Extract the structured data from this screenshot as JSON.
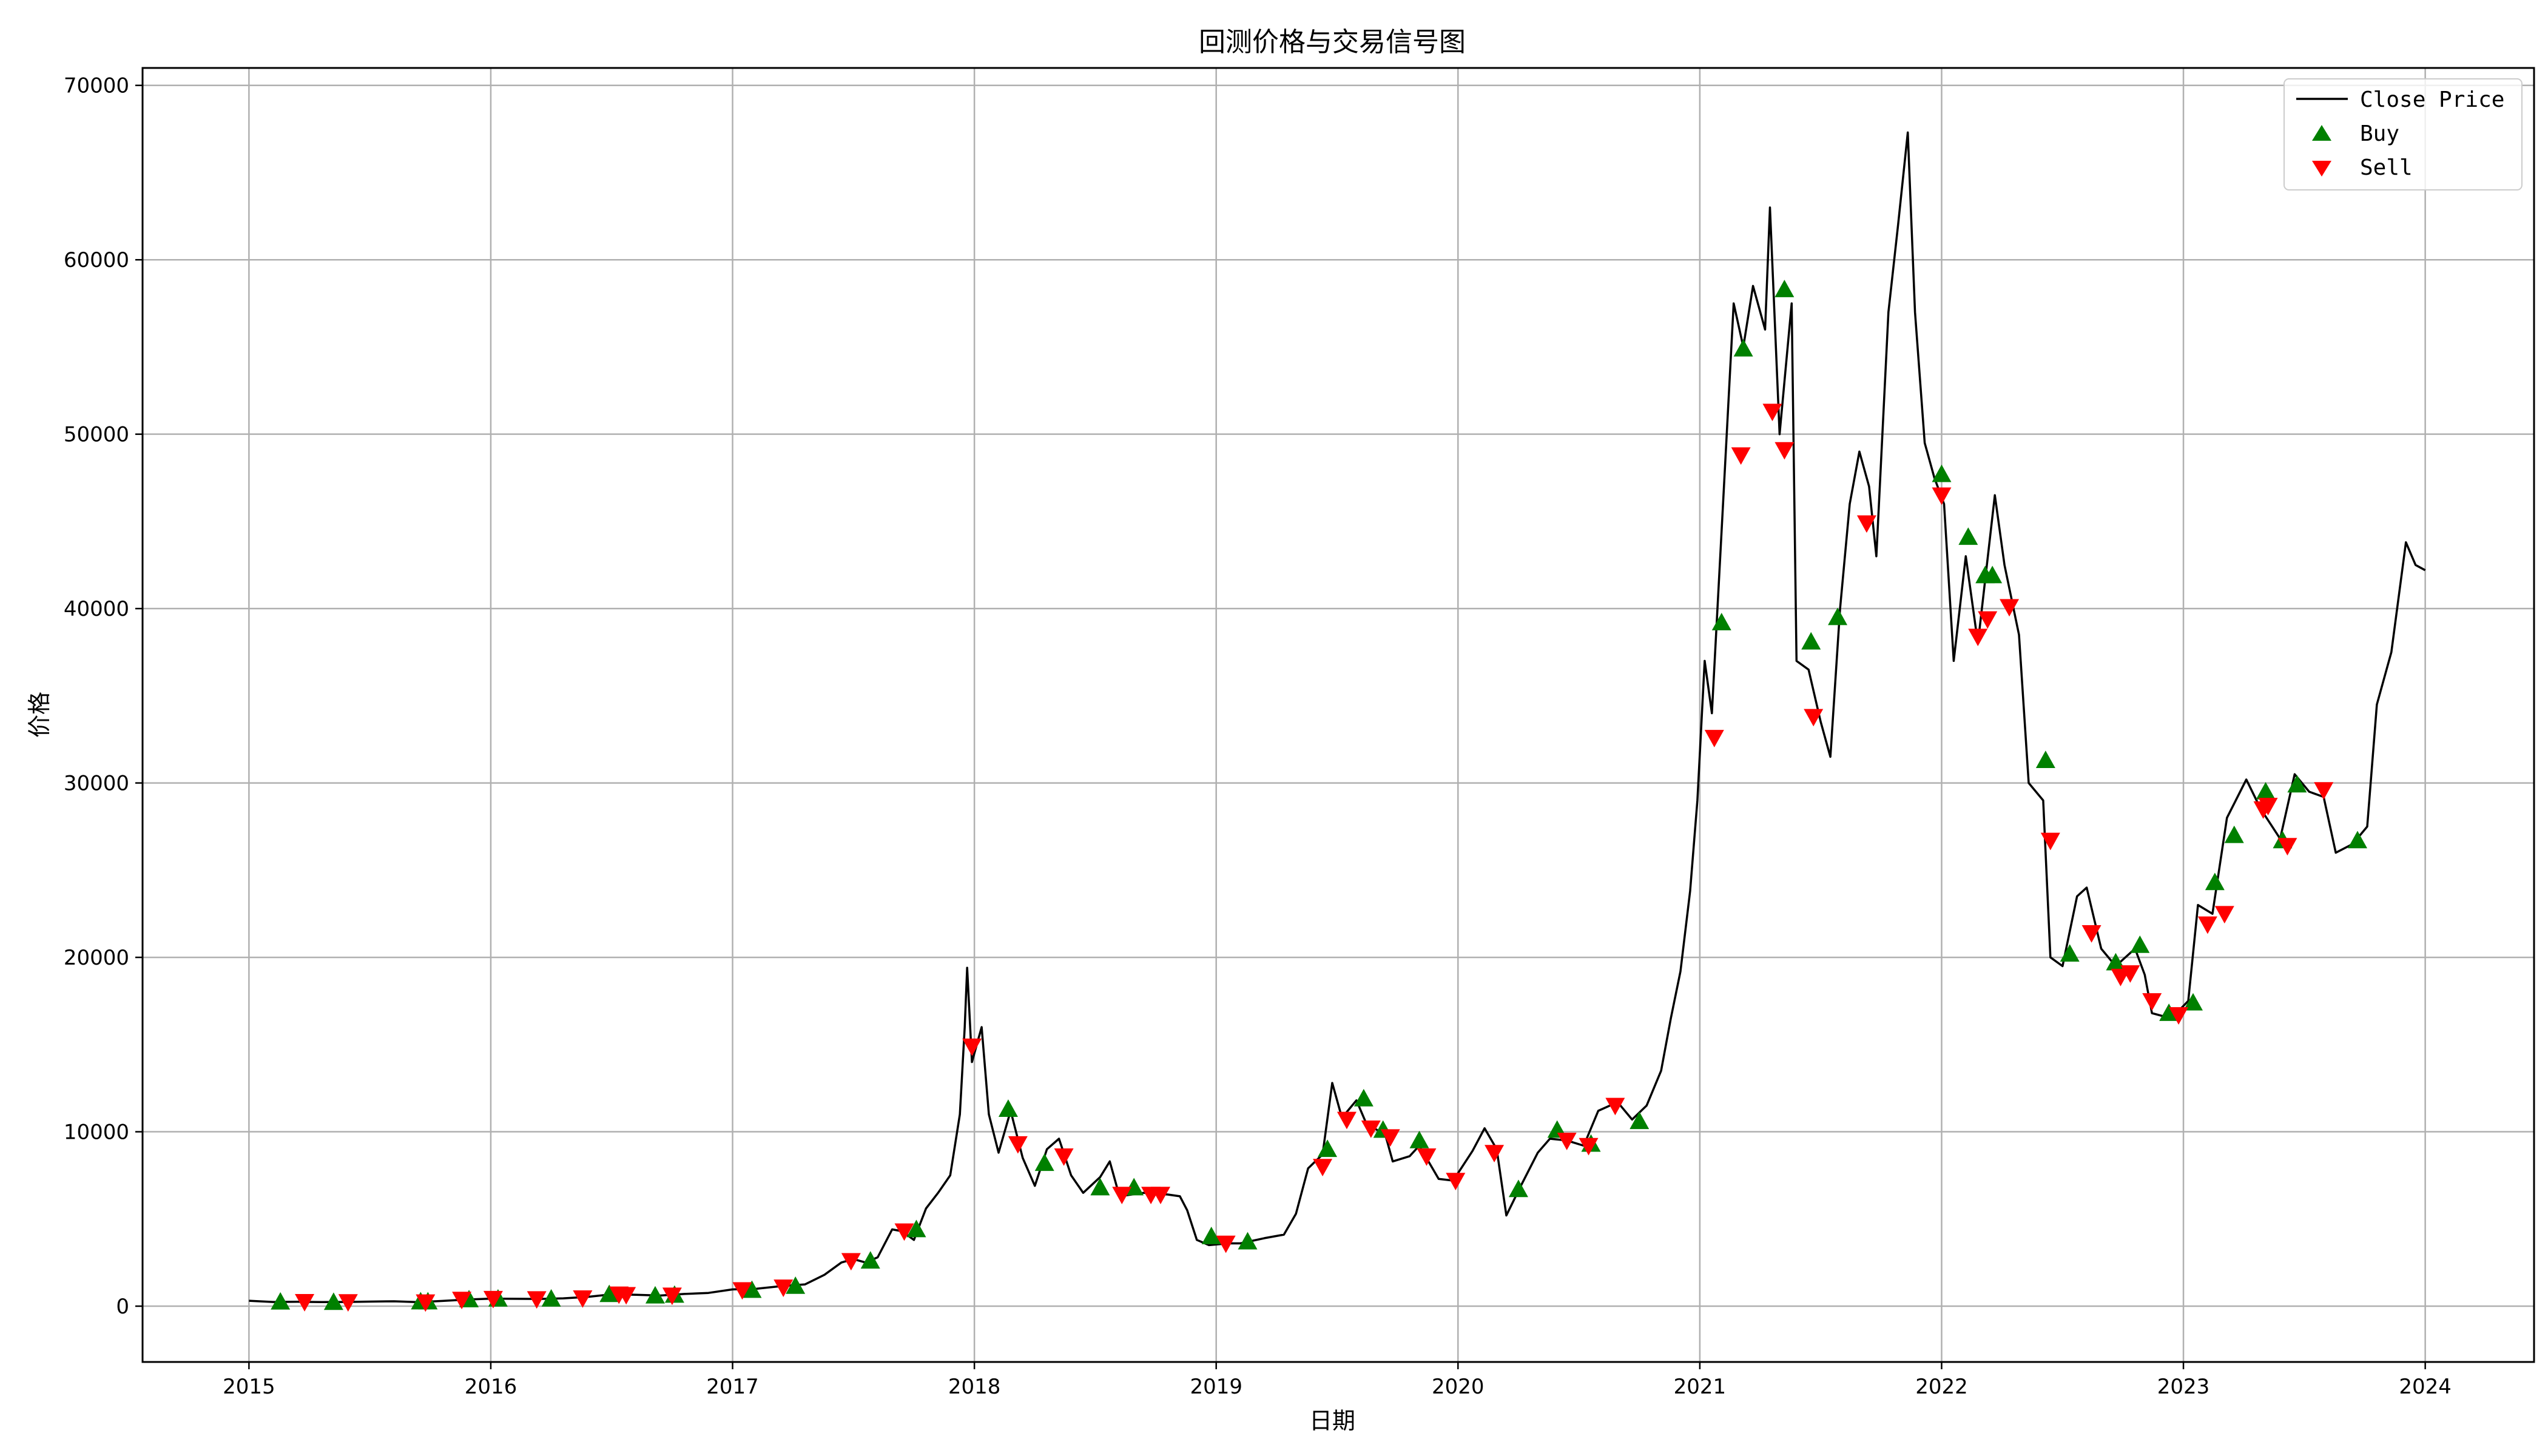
{
  "chart_data": {
    "type": "line",
    "title": "回测价格与交易信号图",
    "xlabel": "日期",
    "ylabel": "价格",
    "x_ticks": [
      "2015",
      "2016",
      "2017",
      "2018",
      "2019",
      "2020",
      "2021",
      "2022",
      "2023",
      "2024"
    ],
    "y_ticks": [
      0,
      10000,
      20000,
      30000,
      40000,
      50000,
      60000,
      70000
    ],
    "xlim": [
      2014.56,
      2024.45
    ],
    "ylim": [
      -3200,
      71000
    ],
    "grid": true,
    "legend_position": "top-right",
    "colors": {
      "line": "#000000",
      "buy": "#008000",
      "sell": "#ff0000",
      "grid": "#b0b0b0"
    },
    "series": [
      {
        "name": "Close Price",
        "type": "line",
        "points": [
          [
            2015.0,
            310
          ],
          [
            2015.1,
            240
          ],
          [
            2015.2,
            250
          ],
          [
            2015.3,
            235
          ],
          [
            2015.4,
            240
          ],
          [
            2015.5,
            260
          ],
          [
            2015.6,
            280
          ],
          [
            2015.7,
            230
          ],
          [
            2015.8,
            300
          ],
          [
            2015.9,
            380
          ],
          [
            2016.0,
            430
          ],
          [
            2016.1,
            420
          ],
          [
            2016.2,
            415
          ],
          [
            2016.3,
            450
          ],
          [
            2016.4,
            530
          ],
          [
            2016.5,
            680
          ],
          [
            2016.6,
            650
          ],
          [
            2016.7,
            610
          ],
          [
            2016.8,
            700
          ],
          [
            2016.9,
            760
          ],
          [
            2017.0,
            960
          ],
          [
            2017.1,
            1000
          ],
          [
            2017.2,
            1150
          ],
          [
            2017.3,
            1250
          ],
          [
            2017.38,
            1800
          ],
          [
            2017.45,
            2500
          ],
          [
            2017.5,
            2700
          ],
          [
            2017.55,
            2500
          ],
          [
            2017.6,
            2800
          ],
          [
            2017.66,
            4400
          ],
          [
            2017.7,
            4300
          ],
          [
            2017.75,
            3800
          ],
          [
            2017.8,
            5600
          ],
          [
            2017.85,
            6500
          ],
          [
            2017.9,
            7500
          ],
          [
            2017.94,
            11000
          ],
          [
            2017.96,
            16000
          ],
          [
            2017.97,
            19400
          ],
          [
            2017.99,
            14000
          ],
          [
            2018.03,
            16000
          ],
          [
            2018.06,
            11000
          ],
          [
            2018.1,
            8800
          ],
          [
            2018.15,
            11200
          ],
          [
            2018.2,
            8500
          ],
          [
            2018.25,
            6900
          ],
          [
            2018.3,
            9000
          ],
          [
            2018.35,
            9600
          ],
          [
            2018.4,
            7500
          ],
          [
            2018.45,
            6500
          ],
          [
            2018.52,
            7400
          ],
          [
            2018.56,
            8300
          ],
          [
            2018.6,
            6300
          ],
          [
            2018.7,
            6500
          ],
          [
            2018.8,
            6400
          ],
          [
            2018.85,
            6300
          ],
          [
            2018.88,
            5500
          ],
          [
            2018.92,
            3800
          ],
          [
            2018.97,
            3500
          ],
          [
            2019.05,
            3600
          ],
          [
            2019.1,
            3600
          ],
          [
            2019.2,
            3900
          ],
          [
            2019.28,
            4100
          ],
          [
            2019.33,
            5300
          ],
          [
            2019.38,
            7900
          ],
          [
            2019.44,
            8700
          ],
          [
            2019.48,
            12800
          ],
          [
            2019.52,
            10800
          ],
          [
            2019.58,
            11800
          ],
          [
            2019.62,
            10500
          ],
          [
            2019.7,
            9800
          ],
          [
            2019.73,
            8300
          ],
          [
            2019.8,
            8600
          ],
          [
            2019.84,
            9200
          ],
          [
            2019.92,
            7300
          ],
          [
            2019.98,
            7200
          ],
          [
            2020.06,
            8900
          ],
          [
            2020.11,
            10200
          ],
          [
            2020.16,
            9000
          ],
          [
            2020.2,
            5200
          ],
          [
            2020.26,
            6900
          ],
          [
            2020.33,
            8800
          ],
          [
            2020.38,
            9600
          ],
          [
            2020.45,
            9500
          ],
          [
            2020.52,
            9200
          ],
          [
            2020.58,
            11200
          ],
          [
            2020.66,
            11700
          ],
          [
            2020.72,
            10700
          ],
          [
            2020.78,
            11500
          ],
          [
            2020.84,
            13500
          ],
          [
            2020.88,
            16500
          ],
          [
            2020.92,
            19200
          ],
          [
            2020.96,
            23800
          ],
          [
            2020.99,
            29000
          ],
          [
            2021.02,
            37000
          ],
          [
            2021.05,
            34000
          ],
          [
            2021.1,
            47000
          ],
          [
            2021.14,
            57500
          ],
          [
            2021.18,
            55000
          ],
          [
            2021.22,
            58500
          ],
          [
            2021.27,
            56000
          ],
          [
            2021.29,
            63000
          ],
          [
            2021.33,
            50000
          ],
          [
            2021.38,
            57500
          ],
          [
            2021.4,
            37000
          ],
          [
            2021.45,
            36500
          ],
          [
            2021.5,
            33500
          ],
          [
            2021.54,
            31500
          ],
          [
            2021.58,
            40000
          ],
          [
            2021.62,
            46000
          ],
          [
            2021.66,
            49000
          ],
          [
            2021.7,
            47000
          ],
          [
            2021.73,
            43000
          ],
          [
            2021.78,
            57000
          ],
          [
            2021.82,
            62000
          ],
          [
            2021.86,
            67300
          ],
          [
            2021.89,
            57000
          ],
          [
            2021.93,
            49500
          ],
          [
            2021.97,
            47500
          ],
          [
            2022.01,
            46000
          ],
          [
            2022.05,
            37000
          ],
          [
            2022.1,
            43000
          ],
          [
            2022.15,
            38000
          ],
          [
            2022.22,
            46500
          ],
          [
            2022.26,
            42500
          ],
          [
            2022.32,
            38500
          ],
          [
            2022.36,
            30000
          ],
          [
            2022.42,
            29000
          ],
          [
            2022.45,
            20000
          ],
          [
            2022.5,
            19500
          ],
          [
            2022.56,
            23500
          ],
          [
            2022.6,
            24000
          ],
          [
            2022.66,
            20500
          ],
          [
            2022.72,
            19500
          ],
          [
            2022.8,
            20500
          ],
          [
            2022.84,
            19000
          ],
          [
            2022.87,
            16800
          ],
          [
            2022.95,
            16500
          ],
          [
            2023.02,
            17500
          ],
          [
            2023.06,
            23000
          ],
          [
            2023.12,
            22500
          ],
          [
            2023.18,
            28000
          ],
          [
            2023.26,
            30200
          ],
          [
            2023.32,
            28500
          ],
          [
            2023.4,
            26800
          ],
          [
            2023.46,
            30500
          ],
          [
            2023.52,
            29500
          ],
          [
            2023.58,
            29200
          ],
          [
            2023.63,
            26000
          ],
          [
            2023.7,
            26500
          ],
          [
            2023.76,
            27500
          ],
          [
            2023.8,
            34500
          ],
          [
            2023.86,
            37500
          ],
          [
            2023.92,
            43800
          ],
          [
            2023.96,
            42500
          ],
          [
            2024.0,
            42200
          ]
        ]
      },
      {
        "name": "Buy",
        "type": "scatter",
        "marker": "triangle-up",
        "points": [
          [
            2015.13,
            250
          ],
          [
            2015.35,
            230
          ],
          [
            2015.71,
            260
          ],
          [
            2015.74,
            260
          ],
          [
            2015.91,
            380
          ],
          [
            2016.03,
            420
          ],
          [
            2016.25,
            420
          ],
          [
            2016.49,
            680
          ],
          [
            2016.68,
            600
          ],
          [
            2016.76,
            640
          ],
          [
            2017.08,
            920
          ],
          [
            2017.26,
            1150
          ],
          [
            2017.57,
            2600
          ],
          [
            2017.76,
            4400
          ],
          [
            2018.14,
            11300
          ],
          [
            2018.29,
            8200
          ],
          [
            2018.52,
            6800
          ],
          [
            2018.66,
            6800
          ],
          [
            2018.98,
            4000
          ],
          [
            2019.13,
            3700
          ],
          [
            2019.46,
            9000
          ],
          [
            2019.61,
            11900
          ],
          [
            2019.69,
            10100
          ],
          [
            2019.84,
            9500
          ],
          [
            2020.25,
            6700
          ],
          [
            2020.41,
            10100
          ],
          [
            2020.55,
            9300
          ],
          [
            2020.75,
            10600
          ],
          [
            2021.09,
            39200
          ],
          [
            2021.18,
            54900
          ],
          [
            2021.35,
            58300
          ],
          [
            2021.46,
            38100
          ],
          [
            2021.57,
            39500
          ],
          [
            2022.0,
            47700
          ],
          [
            2022.11,
            44100
          ],
          [
            2022.18,
            41900
          ],
          [
            2022.21,
            41900
          ],
          [
            2022.43,
            31300
          ],
          [
            2022.53,
            20200
          ],
          [
            2022.72,
            19700
          ],
          [
            2022.82,
            20700
          ],
          [
            2022.94,
            16800
          ],
          [
            2023.04,
            17400
          ],
          [
            2023.21,
            27000
          ],
          [
            2023.13,
            24300
          ],
          [
            2023.34,
            29500
          ],
          [
            2023.41,
            26700
          ],
          [
            2023.47,
            29900
          ],
          [
            2023.72,
            26700
          ]
        ]
      },
      {
        "name": "Sell",
        "type": "scatter",
        "marker": "triangle-down",
        "points": [
          [
            2015.23,
            250
          ],
          [
            2015.41,
            240
          ],
          [
            2015.73,
            230
          ],
          [
            2015.88,
            380
          ],
          [
            2016.01,
            430
          ],
          [
            2016.19,
            410
          ],
          [
            2016.38,
            460
          ],
          [
            2016.53,
            680
          ],
          [
            2016.56,
            650
          ],
          [
            2016.75,
            620
          ],
          [
            2017.04,
            930
          ],
          [
            2017.21,
            1080
          ],
          [
            2017.49,
            2600
          ],
          [
            2017.71,
            4300
          ],
          [
            2017.99,
            14900
          ],
          [
            2018.18,
            9300
          ],
          [
            2018.37,
            8600
          ],
          [
            2018.61,
            6400
          ],
          [
            2018.73,
            6400
          ],
          [
            2018.77,
            6400
          ],
          [
            2019.04,
            3600
          ],
          [
            2019.44,
            8000
          ],
          [
            2019.54,
            10700
          ],
          [
            2019.64,
            10200
          ],
          [
            2019.72,
            9700
          ],
          [
            2019.87,
            8600
          ],
          [
            2019.99,
            7200
          ],
          [
            2020.15,
            8800
          ],
          [
            2020.45,
            9500
          ],
          [
            2020.54,
            9200
          ],
          [
            2020.65,
            11500
          ],
          [
            2021.06,
            32600
          ],
          [
            2021.17,
            48800
          ],
          [
            2021.3,
            51300
          ],
          [
            2021.35,
            49100
          ],
          [
            2021.47,
            33800
          ],
          [
            2021.69,
            44900
          ],
          [
            2022.0,
            46500
          ],
          [
            2022.15,
            38400
          ],
          [
            2022.19,
            39400
          ],
          [
            2022.28,
            40100
          ],
          [
            2022.45,
            26700
          ],
          [
            2022.62,
            21400
          ],
          [
            2022.74,
            18900
          ],
          [
            2022.78,
            19100
          ],
          [
            2022.87,
            17500
          ],
          [
            2022.98,
            16700
          ],
          [
            2023.1,
            21900
          ],
          [
            2023.17,
            22500
          ],
          [
            2023.33,
            28500
          ],
          [
            2023.35,
            28700
          ],
          [
            2023.43,
            26400
          ],
          [
            2023.58,
            29600
          ]
        ]
      }
    ]
  }
}
